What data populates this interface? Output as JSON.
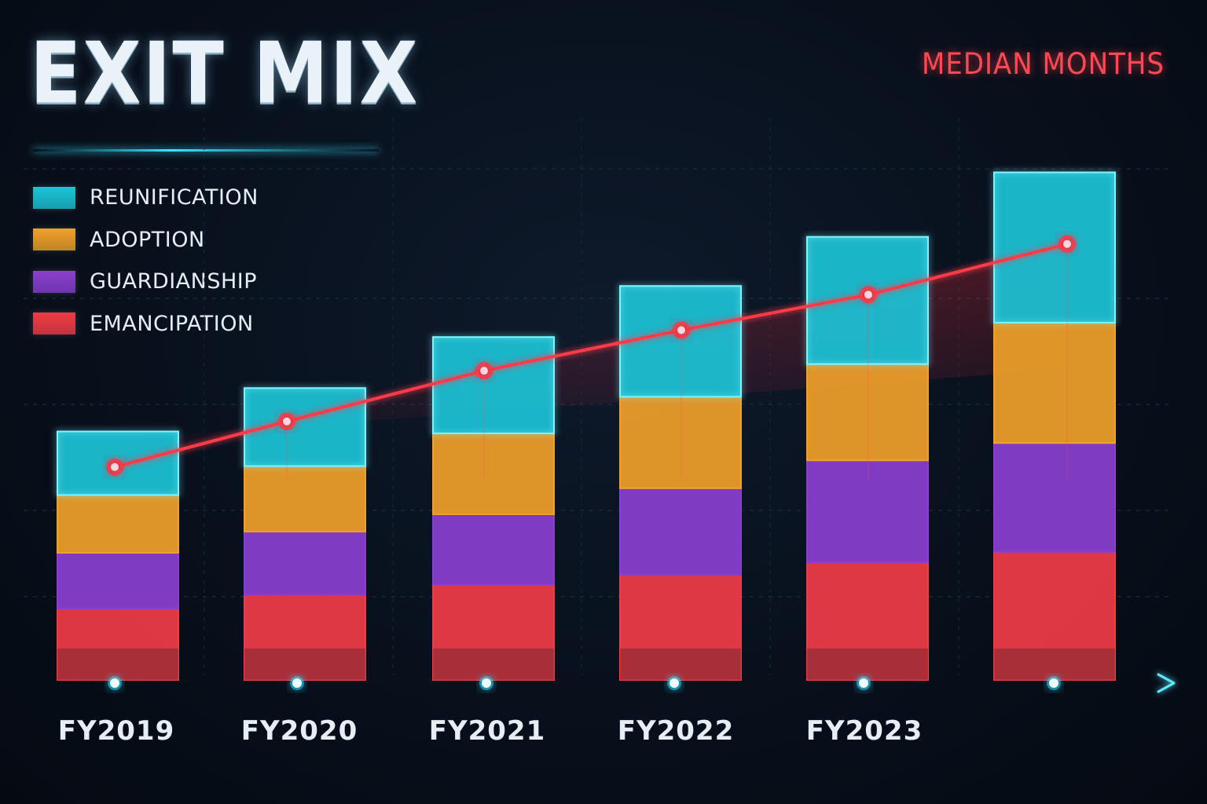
{
  "title": "EXIT MIX",
  "line_label": "MEDIAN MONTHS",
  "colors": {
    "reunification": "#1cc3d6",
    "adoption": "#f0a12a",
    "guardianship": "#8a3fd0",
    "emancipation": "#f03c46",
    "median_line": "#ff3b4a",
    "axis": "#5fe8ff"
  },
  "chart_data": {
    "type": "bar",
    "stacked": true,
    "categories": [
      "FY2019",
      "FY2020",
      "FY2021",
      "FY2022",
      "FY2023",
      ""
    ],
    "series": [
      {
        "name": "EMANCIPATION",
        "values": [
          74,
          88,
          99,
          109,
          122,
          133
        ]
      },
      {
        "name": "GUARDIANSHIP",
        "values": [
          58,
          66,
          73,
          90,
          106,
          113
        ]
      },
      {
        "name": "ADOPTION",
        "values": [
          60,
          68,
          84,
          95,
          100,
          125
        ]
      },
      {
        "name": "REUNIFICATION",
        "values": [
          66,
          81,
          100,
          115,
          132,
          156
        ]
      }
    ],
    "stack_ylim": [
      0,
      600
    ],
    "line": {
      "name": "MEDIAN MONTHS",
      "values": [
        18,
        27,
        37,
        45,
        52,
        62
      ],
      "ylim": [
        -24,
        90
      ]
    },
    "legend_position": "top-left",
    "grid": true
  }
}
